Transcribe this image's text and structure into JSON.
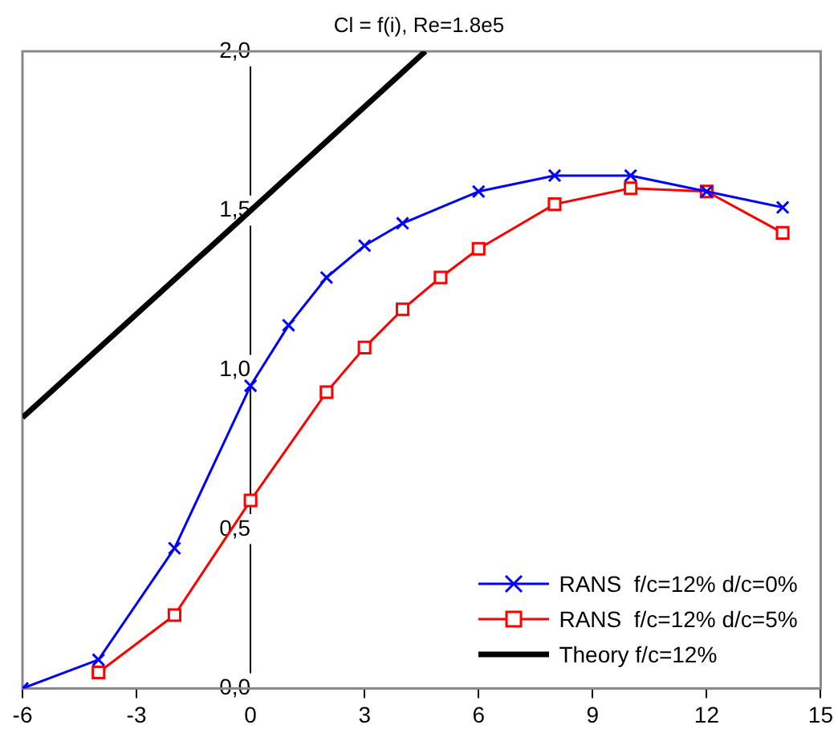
{
  "chart_data": {
    "type": "line",
    "title": "Cl = f(i), Re=1.8e5",
    "xlim": [
      -6,
      15
    ],
    "xticks": [
      -6,
      -3,
      0,
      3,
      6,
      9,
      12,
      15
    ],
    "ylim": [
      0,
      2
    ],
    "yticks": [
      {
        "value": 0,
        "label": "0,0"
      },
      {
        "value": 0.5,
        "label": "0,5"
      },
      {
        "value": 1,
        "label": "1,0"
      },
      {
        "value": 1.5,
        "label": "1,5"
      },
      {
        "value": 2,
        "label": "2,0"
      }
    ],
    "grid": false,
    "legend": "bottom right",
    "line_style": "solid",
    "series": [
      {
        "name": "RANS  f/c=12% d/c=0%",
        "color": "#0000ff",
        "marker": "cross",
        "x": [
          -6,
          -4,
          -2,
          0,
          1,
          2,
          3,
          4,
          6,
          8,
          10,
          12,
          14
        ],
        "values": [
          0,
          0.09,
          0.44,
          0.95,
          1.14,
          1.29,
          1.39,
          1.46,
          1.56,
          1.61,
          1.61,
          1.56,
          1.51
        ]
      },
      {
        "name": "RANS  f/c=12% d/c=5%",
        "color": "#ff0000",
        "marker": "square",
        "x": [
          -4,
          -2,
          0,
          2,
          3,
          4,
          5,
          6,
          8,
          10,
          12,
          14
        ],
        "values": [
          0.05,
          0.23,
          0.59,
          0.93,
          1.07,
          1.19,
          1.29,
          1.38,
          1.52,
          1.57,
          1.56,
          1.43
        ]
      },
      {
        "name": "Theory f/c=12%",
        "color": "#000000",
        "marker": "none",
        "x": [
          -6,
          0,
          4.6
        ],
        "values": [
          0.85,
          1.5,
          2.0
        ]
      }
    ]
  }
}
